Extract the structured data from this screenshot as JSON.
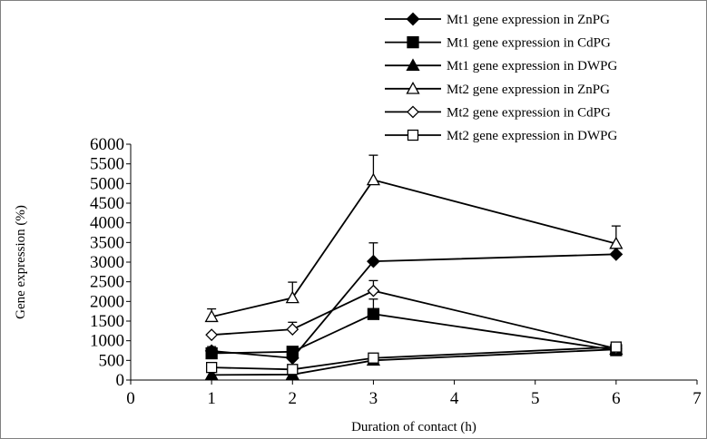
{
  "chart_data": {
    "type": "line",
    "xlabel": "Duration of contact (h)",
    "ylabel": "Gene expression (%)",
    "xlim": [
      0,
      7
    ],
    "ylim": [
      0,
      6000
    ],
    "x_ticks": [
      "0",
      "1",
      "2",
      "3",
      "4",
      "5",
      "6",
      "7"
    ],
    "y_ticks": [
      "0",
      "500",
      "1000",
      "1500",
      "2000",
      "2500",
      "3000",
      "3500",
      "4000",
      "4500",
      "5000",
      "5500",
      "6000"
    ],
    "grid": false,
    "legend_position": "top-right",
    "x": [
      1,
      2,
      3,
      6
    ],
    "series": [
      {
        "name": "Mt1 gene expression in ZnPG",
        "marker": "diamond-filled",
        "values": [
          740,
          560,
          3020,
          3200
        ],
        "error": [
          null,
          null,
          470,
          null
        ]
      },
      {
        "name": "Mt1 gene expression in CdPG",
        "marker": "square-filled",
        "values": [
          680,
          720,
          1680,
          760
        ],
        "error": [
          170,
          null,
          380,
          null
        ]
      },
      {
        "name": "Mt1 gene expression in DWPG",
        "marker": "triangle-filled",
        "values": [
          130,
          140,
          500,
          780
        ],
        "error": [
          null,
          null,
          null,
          null
        ]
      },
      {
        "name": "Mt2 gene expression in ZnPG",
        "marker": "triangle-open",
        "values": [
          1610,
          2090,
          5090,
          3470
        ],
        "error": [
          200,
          400,
          630,
          450
        ]
      },
      {
        "name": "Mt2 gene expression in CdPG",
        "marker": "diamond-open",
        "values": [
          1150,
          1290,
          2270,
          800
        ],
        "error": [
          null,
          180,
          260,
          null
        ]
      },
      {
        "name": "Mt2 gene expression in DWPG",
        "marker": "square-open",
        "values": [
          320,
          270,
          560,
          840
        ],
        "error": [
          null,
          null,
          null,
          null
        ]
      }
    ]
  }
}
